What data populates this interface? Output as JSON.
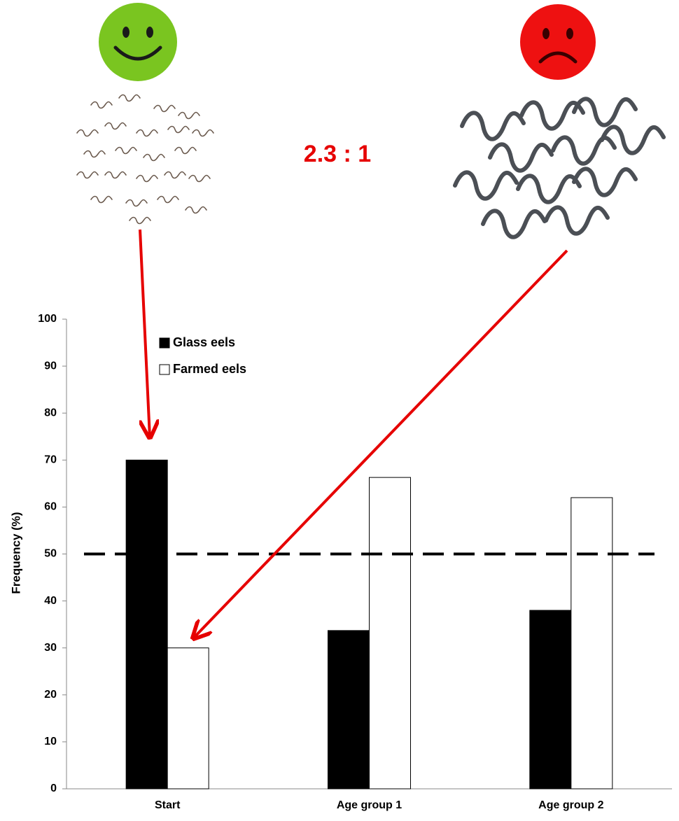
{
  "chart_data": {
    "type": "bar",
    "annotation": "2.3 : 1",
    "y_label": "Frequency (%)",
    "categories": [
      "Start",
      "Age group 1",
      "Age group 2"
    ],
    "series": [
      {
        "name": "Glass eels",
        "color": "#000000",
        "values": [
          70,
          33.7,
          38
        ]
      },
      {
        "name": "Farmed eels",
        "color": "#ffffff",
        "values": [
          30,
          66.3,
          62
        ]
      }
    ],
    "ylim": [
      0,
      100
    ],
    "yticks": [
      0,
      10,
      20,
      30,
      40,
      50,
      60,
      70,
      80,
      90,
      100
    ],
    "reference_line": 50,
    "legend": "upper left",
    "grid": false
  }
}
